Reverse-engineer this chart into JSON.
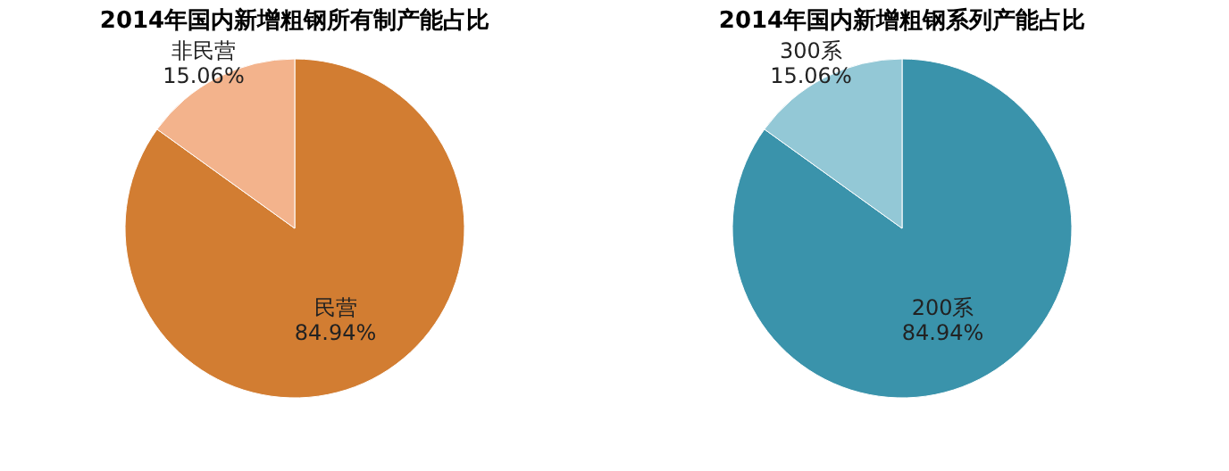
{
  "chart_data": [
    {
      "type": "pie",
      "title": "2014年国内新增粗钢所有制产能占比",
      "categories": [
        "民营",
        "非民营"
      ],
      "values": [
        84.94,
        15.06
      ],
      "value_labels": [
        "84.94%",
        "15.06%"
      ],
      "colors": [
        "#d27d32",
        "#f3b38c"
      ],
      "legend": false
    },
    {
      "type": "pie",
      "title": "2014年国内新增粗钢系列产能占比",
      "categories": [
        "200系",
        "300系"
      ],
      "values": [
        84.94,
        15.06
      ],
      "value_labels": [
        "84.94%",
        "15.06%"
      ],
      "colors": [
        "#3a93ab",
        "#93c8d6"
      ],
      "legend": false
    }
  ]
}
